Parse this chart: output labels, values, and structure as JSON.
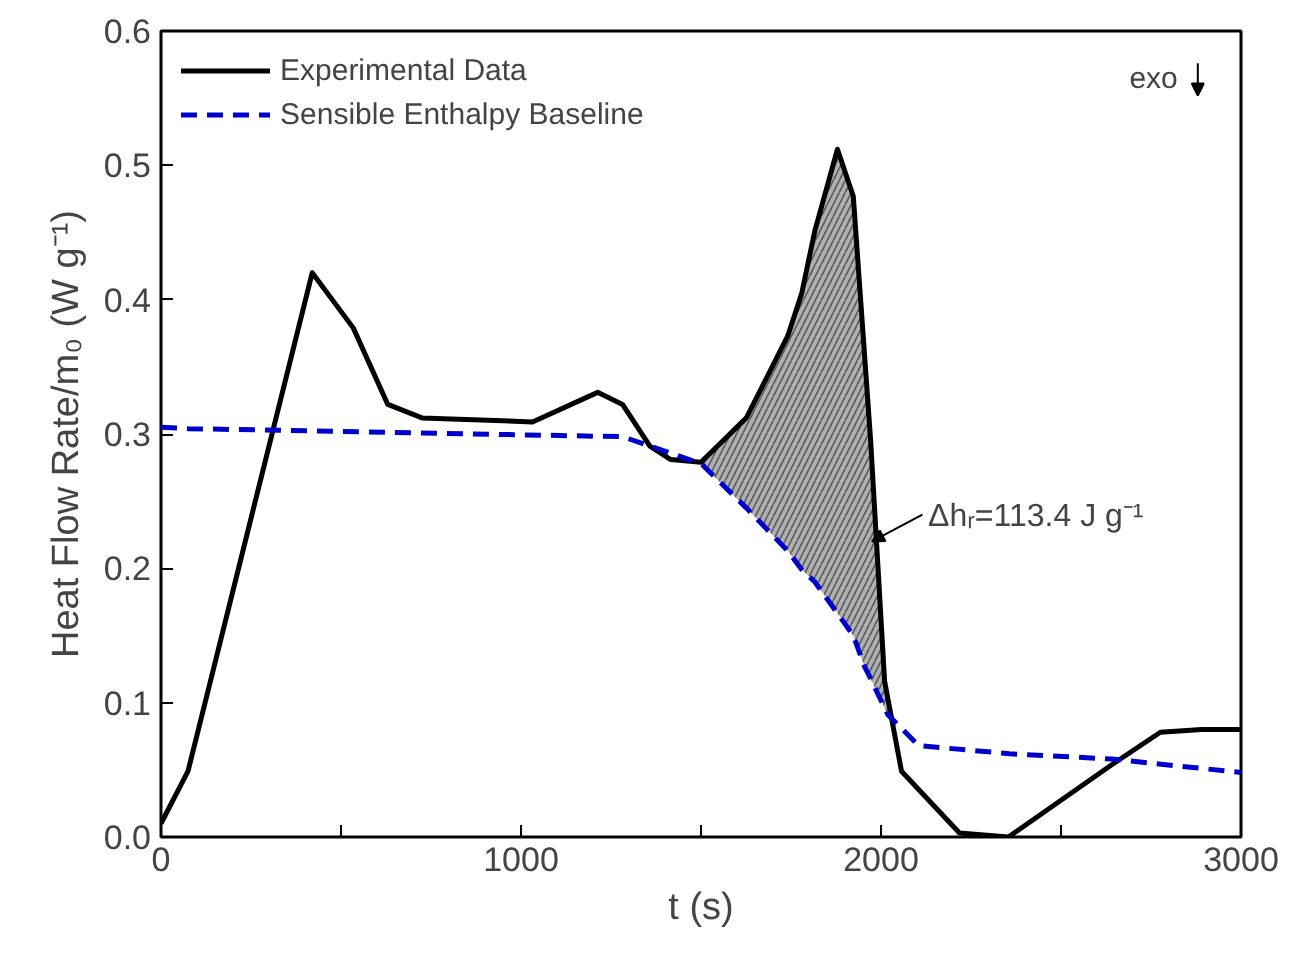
{
  "chart_data": {
    "type": "line",
    "xlabel": "t (s)",
    "ylabel": "Heat Flow Rate/m₀ (W g⁻¹)",
    "xlim": [
      0,
      3000
    ],
    "ylim": [
      0,
      0.6
    ],
    "xticks": [
      0,
      {
        "value": 500,
        "label": null
      },
      1000,
      {
        "value": 1500,
        "label": null
      },
      2000,
      {
        "value": 2500,
        "label": null
      },
      3000
    ],
    "yticks": [
      {
        "value": 0,
        "label": "0.0"
      },
      0.1,
      0.2,
      0.3,
      0.4,
      0.5,
      0.6
    ],
    "grid": false,
    "legend": "top left",
    "marker": "none",
    "series": [
      {
        "name": "Experimental Data",
        "color": "#000000",
        "line_style": "solid",
        "x": [
          0,
          75,
          420,
          534,
          630,
          725,
          1032,
          1213,
          1282,
          1358,
          1416,
          1500,
          1626,
          1741,
          1780,
          1816,
          1879,
          1923,
          1954,
          1971,
          2010,
          2057,
          2218,
          2354,
          2642,
          2776,
          2891,
          3000
        ],
        "values": [
          0.01,
          0.049,
          0.42,
          0.379,
          0.322,
          0.312,
          0.309,
          0.331,
          0.322,
          0.291,
          0.281,
          0.279,
          0.312,
          0.373,
          0.405,
          0.451,
          0.512,
          0.477,
          0.36,
          0.296,
          0.116,
          0.049,
          0.003,
          0.0,
          0.054,
          0.078,
          0.08,
          0.08
        ]
      },
      {
        "name": "Sensible Enthalpy Baseline",
        "color": "#0000cc",
        "line_style": "dashed",
        "x": [
          0,
          75,
          1282,
          1500,
          1626,
          1741,
          1780,
          1816,
          1875,
          1923,
          1954,
          1971,
          2019,
          2105,
          2356,
          2642,
          3000
        ],
        "values": [
          0.305,
          0.304,
          0.298,
          0.278,
          0.245,
          0.213,
          0.199,
          0.19,
          0.168,
          0.15,
          0.127,
          0.118,
          0.091,
          0.068,
          0.062,
          0.058,
          0.048
        ],
        "lower": [
          null,
          null,
          null,
          0.278,
          0.245,
          0.213,
          0.199,
          0.19,
          0.168,
          0.15,
          0.127,
          0.118,
          0.091,
          null,
          null,
          null,
          null
        ],
        "upper": [
          null,
          null,
          null,
          0.279,
          0.312,
          0.373,
          0.405,
          0.451,
          0.51,
          0.477,
          0.36,
          0.296,
          0.091,
          null,
          null,
          null,
          null
        ]
      }
    ],
    "annotations": [
      {
        "text": "Δhᵣ=113.4 J g⁻¹",
        "x": 1975,
        "y": 0.22
      },
      "exo"
    ]
  }
}
